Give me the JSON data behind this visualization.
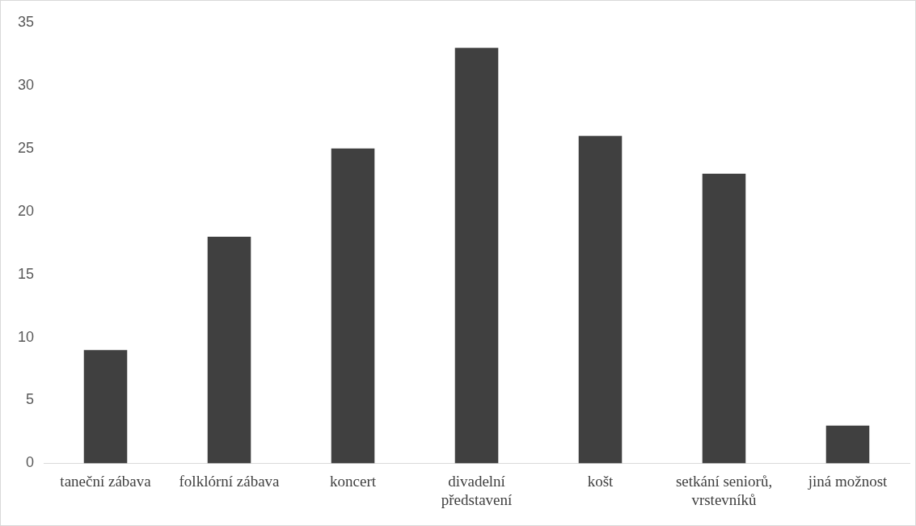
{
  "chart_data": {
    "type": "bar",
    "categories": [
      "taneční zábava",
      "folklórní zábava",
      "koncert",
      "divadelní představení",
      "košt",
      "setkání seniorů, vrstevníků",
      "jiná možnost"
    ],
    "values": [
      9,
      18,
      25,
      33,
      26,
      23,
      3
    ],
    "color": "#404040",
    "ylim": [
      0,
      35
    ],
    "yticks": [
      0,
      5,
      10,
      15,
      20,
      25,
      30,
      35
    ],
    "grid": false,
    "legend": false
  }
}
